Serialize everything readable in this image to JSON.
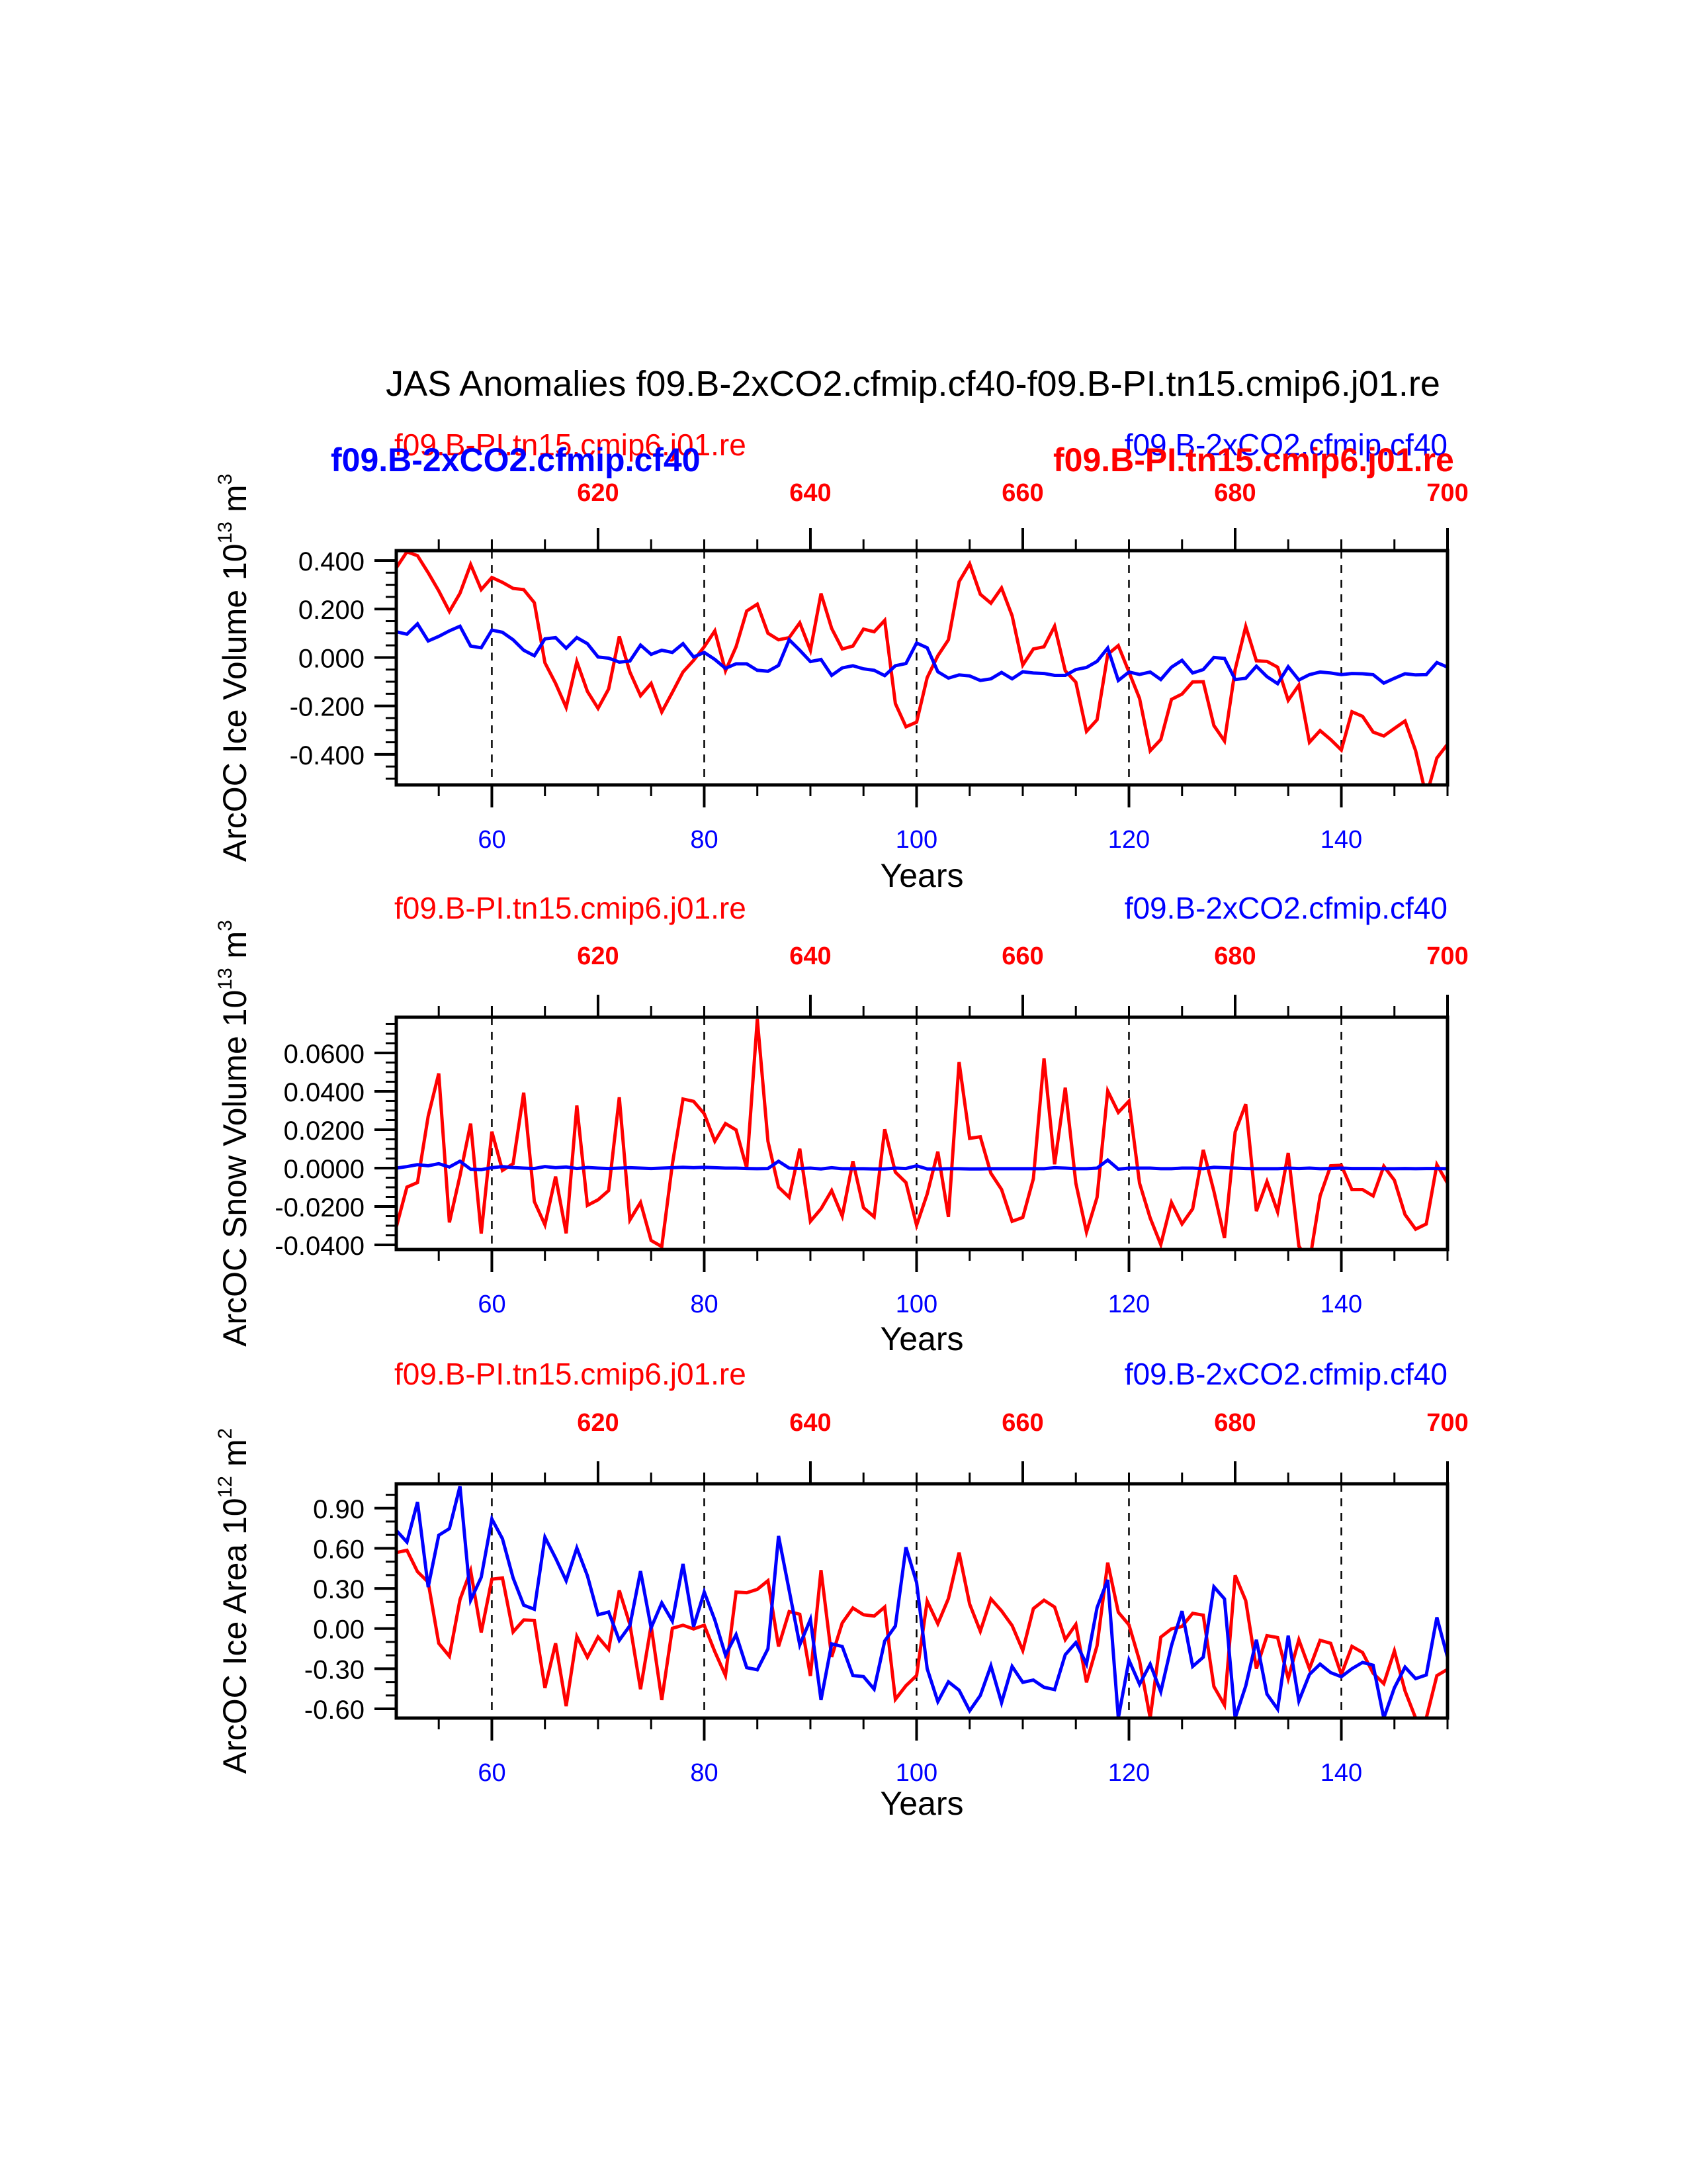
{
  "figure": {
    "title": "JAS Anomalies f09.B-2xCO2.cfmip.cf40-f09.B-PI.tn15.cmip6.j01.re",
    "colors": {
      "red": "#ff0000",
      "blue": "#0000ff",
      "axis": "#000000"
    },
    "overlay_labels": {
      "bold_left": "f09.B-2xCO2.cfmip.cf40",
      "bold_right": "f09.B-PI.tn15.cmip6.j01.re"
    }
  },
  "chart_data": [
    {
      "type": "line",
      "title": "",
      "left_subtitle": "f09.B-PI.tn15.cmip6.j01.re",
      "right_subtitle": "f09.B-2xCO2.cfmip.cf40",
      "xlabel": "Years",
      "ylabel": "ArcOC Ice Volume 10",
      "ylabel_sup": "13",
      "ylabel_unit": " m",
      "ylabel_unit_sup": "3",
      "xlim": [
        51,
        150
      ],
      "ylim": [
        -0.526,
        0.441
      ],
      "yticks": [
        0.4,
        0.2,
        0.0,
        -0.2,
        -0.4
      ],
      "ytick_labels": [
        "0.400",
        "0.200",
        "0.000",
        "-0.200",
        "-0.400"
      ],
      "yminor": 0.05,
      "xticks": [
        60,
        80,
        100,
        120,
        140
      ],
      "xtick_labels": [
        "60",
        "80",
        "100",
        "120",
        "140"
      ],
      "top_xticks": [
        620,
        640,
        660,
        680,
        700
      ],
      "top_xtick_labels": [
        "620",
        "640",
        "660",
        "680",
        "700"
      ],
      "top_offset": 550,
      "grid": "dashed-vertical-at-major-x",
      "series": [
        {
          "name": "f09.B-PI.tn15.cmip6.j01.re",
          "color": "#ff0000",
          "values": [
            0.37,
            0.436,
            0.42,
            0.35,
            0.275,
            0.19,
            0.265,
            0.384,
            0.28,
            0.33,
            0.31,
            0.285,
            0.28,
            0.226,
            -0.022,
            -0.107,
            -0.206,
            -0.017,
            -0.14,
            -0.21,
            -0.13,
            0.087,
            -0.06,
            -0.158,
            -0.107,
            -0.225,
            -0.144,
            -0.06,
            -0.012,
            0.044,
            0.11,
            -0.055,
            0.044,
            0.192,
            0.22,
            0.1,
            0.073,
            0.082,
            0.143,
            0.03,
            0.264,
            0.12,
            0.035,
            0.047,
            0.117,
            0.106,
            0.153,
            -0.19,
            -0.286,
            -0.267,
            -0.083,
            0.007,
            0.073,
            0.313,
            0.387,
            0.261,
            0.224,
            0.287,
            0.172,
            -0.031,
            0.035,
            0.044,
            0.129,
            -0.055,
            -0.102,
            -0.305,
            -0.257,
            0.013,
            0.049,
            -0.06,
            -0.169,
            -0.385,
            -0.339,
            -0.173,
            -0.151,
            -0.101,
            -0.1,
            -0.281,
            -0.345,
            -0.05,
            0.128,
            -0.014,
            -0.016,
            -0.04,
            -0.177,
            -0.114,
            -0.35,
            -0.302,
            -0.339,
            -0.382,
            -0.224,
            -0.243,
            -0.308,
            -0.324,
            -0.293,
            -0.262,
            -0.385,
            -0.574,
            -0.415,
            -0.358
          ]
        },
        {
          "name": "f09.B-2xCO2.cfmip.cf40",
          "color": "#0000ff",
          "values": [
            0.106,
            0.096,
            0.139,
            0.068,
            0.087,
            0.11,
            0.129,
            0.047,
            0.04,
            0.113,
            0.104,
            0.073,
            0.03,
            0.007,
            0.077,
            0.082,
            0.038,
            0.082,
            0.057,
            0.002,
            -0.003,
            -0.019,
            -0.015,
            0.051,
            0.013,
            0.03,
            0.021,
            0.057,
            0.002,
            0.021,
            -0.008,
            -0.045,
            -0.026,
            -0.026,
            -0.053,
            -0.057,
            -0.033,
            0.073,
            0.03,
            -0.017,
            -0.008,
            -0.074,
            -0.043,
            -0.034,
            -0.047,
            -0.053,
            -0.075,
            -0.034,
            -0.025,
            0.06,
            0.04,
            -0.059,
            -0.085,
            -0.072,
            -0.076,
            -0.095,
            -0.088,
            -0.062,
            -0.088,
            -0.059,
            -0.064,
            -0.066,
            -0.074,
            -0.074,
            -0.05,
            -0.041,
            -0.016,
            0.039,
            -0.095,
            -0.06,
            -0.07,
            -0.06,
            -0.091,
            -0.04,
            -0.012,
            -0.064,
            -0.05,
            0.0,
            -0.004,
            -0.091,
            -0.086,
            -0.036,
            -0.079,
            -0.108,
            -0.038,
            -0.093,
            -0.071,
            -0.06,
            -0.064,
            -0.071,
            -0.066,
            -0.067,
            -0.071,
            -0.106,
            -0.086,
            -0.067,
            -0.072,
            -0.071,
            -0.021,
            -0.04
          ]
        }
      ]
    },
    {
      "type": "line",
      "title": "",
      "left_subtitle": "f09.B-PI.tn15.cmip6.j01.re",
      "right_subtitle": "f09.B-2xCO2.cfmip.cf40",
      "xlabel": "Years",
      "ylabel": "ArcOC Snow Volume 10",
      "ylabel_sup": "13",
      "ylabel_unit": " m",
      "ylabel_unit_sup": "3",
      "xlim": [
        51,
        150
      ],
      "ylim": [
        -0.0424,
        0.0786
      ],
      "yticks": [
        0.06,
        0.04,
        0.02,
        0.0,
        -0.02,
        -0.04
      ],
      "ytick_labels": [
        "0.0600",
        "0.0400",
        "0.0200",
        "0.0000",
        "-0.0200",
        "-0.0400"
      ],
      "yminor": 0.005,
      "xticks": [
        60,
        80,
        100,
        120,
        140
      ],
      "xtick_labels": [
        "60",
        "80",
        "100",
        "120",
        "140"
      ],
      "top_xticks": [
        620,
        640,
        660,
        680,
        700
      ],
      "top_xtick_labels": [
        "620",
        "640",
        "660",
        "680",
        "700"
      ],
      "top_offset": 550,
      "grid": "dashed-vertical-at-major-x",
      "series": [
        {
          "name": "f09.B-PI.tn15.cmip6.j01.re",
          "color": "#ff0000",
          "values": [
            -0.0307,
            -0.0099,
            -0.0075,
            0.027,
            0.0493,
            -0.0283,
            -0.004,
            0.0232,
            -0.0341,
            0.019,
            -0.0012,
            0.0023,
            0.0393,
            -0.0174,
            -0.0295,
            -0.0044,
            -0.034,
            0.0326,
            -0.0194,
            -0.0165,
            -0.0117,
            0.0369,
            -0.027,
            -0.0179,
            -0.0377,
            -0.0409,
            0.002,
            0.036,
            0.0348,
            0.0283,
            0.014,
            0.0232,
            0.0199,
            0.0,
            0.0776,
            0.014,
            -0.0099,
            -0.0152,
            0.0101,
            -0.0277,
            -0.0212,
            -0.0117,
            -0.025,
            0.0036,
            -0.0206,
            -0.0254,
            0.0202,
            -0.0021,
            -0.0075,
            -0.0298,
            -0.0135,
            0.0086,
            -0.0254,
            0.0552,
            0.0155,
            0.0163,
            -0.0027,
            -0.0111,
            -0.0277,
            -0.0257,
            -0.0055,
            0.0571,
            0.002,
            0.0419,
            -0.0079,
            -0.0333,
            -0.0152,
            0.0402,
            0.029,
            0.0349,
            -0.0079,
            -0.026,
            -0.0398,
            -0.0179,
            -0.0291,
            -0.0212,
            0.0095,
            -0.0121,
            -0.0364,
            0.0188,
            0.0333,
            -0.0224,
            -0.007,
            -0.0228,
            0.0079,
            -0.0406,
            -0.0491,
            -0.0145,
            0.0012,
            0.0015,
            -0.0112,
            -0.0112,
            -0.0145,
            0.001,
            -0.0063,
            -0.0242,
            -0.0318,
            -0.0291,
            0.0018,
            -0.0079
          ]
        },
        {
          "name": "f09.B-2xCO2.cfmip.cf40",
          "color": "#0000ff",
          "values": [
            0.0,
            0.0008,
            0.0018,
            0.0012,
            0.0023,
            0.0006,
            0.0036,
            -0.0006,
            -0.0008,
            0.0002,
            0.0008,
            0.0003,
            0.0,
            -0.0002,
            0.0008,
            0.0002,
            0.0006,
            -0.0002,
            0.0003,
            0.0,
            -0.0002,
            0.0,
            0.0002,
            0.0,
            -0.0002,
            0.0,
            0.0002,
            0.0004,
            0.0002,
            0.0004,
            0.0002,
            0.0,
            0.0,
            -0.0002,
            -0.0003,
            -0.0002,
            0.0036,
            0.0,
            -0.0002,
            0.0,
            -0.0004,
            0.0002,
            -0.0003,
            -0.0003,
            -0.0003,
            -0.0004,
            -0.0004,
            0.0,
            -0.0002,
            0.0012,
            -0.0004,
            -0.0004,
            -0.0003,
            -0.0003,
            -0.0004,
            -0.0004,
            -0.0003,
            -0.0003,
            -0.0003,
            -0.0003,
            -0.0003,
            -0.0003,
            0.0002,
            0.0,
            -0.0003,
            -0.0003,
            0.0,
            0.0042,
            -0.0005,
            0.0,
            0.0,
            0.0,
            -0.0003,
            -0.0003,
            0.0,
            0.0,
            -0.0003,
            0.0004,
            0.0002,
            0.0,
            -0.0002,
            -0.0003,
            -0.0003,
            -0.0003,
            0.0,
            -0.0002,
            0.0,
            -0.0003,
            -0.0002,
            0.0,
            -0.0002,
            -0.0002,
            -0.0002,
            -0.0003,
            -0.0003,
            -0.0002,
            -0.0003,
            -0.0002,
            -0.0002,
            -0.0003
          ]
        }
      ]
    },
    {
      "type": "line",
      "title": "",
      "left_subtitle": "f09.B-PI.tn15.cmip6.j01.re",
      "right_subtitle": "f09.B-2xCO2.cfmip.cf40",
      "xlabel": "Years",
      "ylabel": "ArcOC Ice Area 10",
      "ylabel_sup": "12",
      "ylabel_unit": " m",
      "ylabel_unit_sup": "2",
      "xlim": [
        51,
        150
      ],
      "ylim": [
        -0.669,
        1.082
      ],
      "yticks": [
        0.9,
        0.6,
        0.3,
        0.0,
        -0.3,
        -0.6
      ],
      "ytick_labels": [
        "0.90",
        "0.60",
        "0.30",
        "0.00",
        "-0.30",
        "-0.60"
      ],
      "yminor": 0.1,
      "xticks": [
        60,
        80,
        100,
        120,
        140
      ],
      "xtick_labels": [
        "60",
        "80",
        "100",
        "120",
        "140"
      ],
      "top_xticks": [
        620,
        640,
        660,
        680,
        700
      ],
      "top_xtick_labels": [
        "620",
        "640",
        "660",
        "680",
        "700"
      ],
      "top_offset": 550,
      "grid": "dashed-vertical-at-major-x",
      "series": [
        {
          "name": "f09.B-PI.tn15.cmip6.j01.re",
          "color": "#ff0000",
          "values": [
            0.568,
            0.585,
            0.425,
            0.347,
            -0.11,
            -0.207,
            0.217,
            0.432,
            -0.029,
            0.369,
            0.378,
            -0.025,
            0.064,
            0.061,
            -0.444,
            -0.11,
            -0.58,
            -0.059,
            -0.215,
            -0.063,
            -0.156,
            0.285,
            0.031,
            -0.453,
            0.022,
            -0.534,
            0.002,
            0.025,
            -0.003,
            0.025,
            -0.173,
            -0.351,
            0.273,
            0.268,
            0.293,
            0.358,
            -0.134,
            0.127,
            0.107,
            -0.354,
            0.437,
            -0.212,
            0.042,
            0.154,
            0.103,
            0.093,
            0.161,
            -0.529,
            -0.427,
            -0.351,
            0.205,
            0.036,
            0.225,
            0.568,
            0.183,
            -0.02,
            0.222,
            0.132,
            0.022,
            -0.164,
            0.149,
            0.212,
            0.161,
            -0.083,
            0.031,
            -0.402,
            -0.128,
            0.493,
            0.122,
            0.028,
            -0.241,
            -0.669,
            -0.064,
            -0.002,
            0.016,
            0.114,
            0.1,
            -0.433,
            -0.572,
            0.398,
            0.209,
            -0.3,
            -0.053,
            -0.067,
            -0.374,
            -0.084,
            -0.3,
            -0.088,
            -0.11,
            -0.343,
            -0.133,
            -0.179,
            -0.334,
            -0.412,
            -0.167,
            -0.466,
            -0.669,
            -0.669,
            -0.352,
            -0.305
          ]
        },
        {
          "name": "f09.B-2xCO2.cfmip.cf40",
          "color": "#0000ff",
          "values": [
            0.734,
            0.646,
            0.946,
            0.31,
            0.697,
            0.747,
            1.064,
            0.212,
            0.383,
            0.819,
            0.671,
            0.378,
            0.175,
            0.144,
            0.683,
            0.527,
            0.358,
            0.602,
            0.395,
            0.103,
            0.124,
            -0.088,
            0.022,
            0.429,
            0.005,
            0.192,
            0.056,
            0.483,
            0.014,
            0.273,
            0.064,
            -0.198,
            -0.046,
            -0.292,
            -0.308,
            -0.151,
            0.692,
            0.285,
            -0.122,
            0.069,
            -0.534,
            -0.114,
            -0.134,
            -0.351,
            -0.359,
            -0.453,
            -0.093,
            0.019,
            0.607,
            0.344,
            -0.3,
            -0.546,
            -0.398,
            -0.461,
            -0.614,
            -0.5,
            -0.278,
            -0.554,
            -0.283,
            -0.402,
            -0.385,
            -0.439,
            -0.456,
            -0.195,
            -0.105,
            -0.266,
            0.157,
            0.364,
            -0.669,
            -0.236,
            -0.416,
            -0.266,
            -0.472,
            -0.128,
            0.131,
            -0.283,
            -0.214,
            0.312,
            0.222,
            -0.669,
            -0.429,
            -0.084,
            -0.49,
            -0.602,
            -0.053,
            -0.541,
            -0.343,
            -0.266,
            -0.329,
            -0.36,
            -0.3,
            -0.253,
            -0.274,
            -0.669,
            -0.443,
            -0.288,
            -0.374,
            -0.347,
            0.084,
            -0.214
          ]
        }
      ]
    }
  ]
}
